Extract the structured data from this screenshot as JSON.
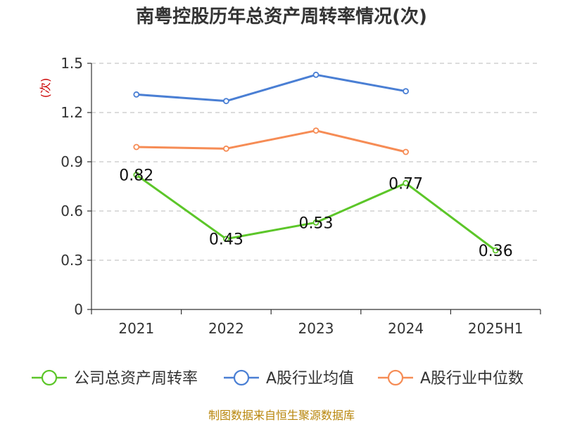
{
  "chart_data": {
    "type": "line",
    "title": "南粤控股历年总资产周转率情况(次)",
    "ylabel": "(次)",
    "xlabel": "",
    "categories": [
      "2021",
      "2022",
      "2023",
      "2024",
      "2025H1"
    ],
    "ylim": [
      0,
      1.5
    ],
    "yticks": [
      0,
      0.3,
      0.6,
      0.9,
      1.2,
      1.5
    ],
    "ytick_labels": [
      "0",
      "0.3",
      "0.6",
      "0.9",
      "1.2",
      "1.5"
    ],
    "grid": true,
    "legend_position": "bottom",
    "series": [
      {
        "name": "公司总资产周转率",
        "color": "#5cc629",
        "values": [
          0.82,
          0.43,
          0.53,
          0.77,
          0.36
        ],
        "data_labels": [
          "0.82",
          "0.43",
          "0.53",
          "0.77",
          "0.36"
        ]
      },
      {
        "name": "A股行业均值",
        "color": "#4a7fd4",
        "values": [
          1.31,
          1.27,
          1.43,
          1.33,
          null
        ]
      },
      {
        "name": "A股行业中位数",
        "color": "#f68c55",
        "values": [
          0.99,
          0.98,
          1.09,
          0.96,
          null
        ]
      }
    ],
    "source": "制图数据来自恒生聚源数据库"
  }
}
